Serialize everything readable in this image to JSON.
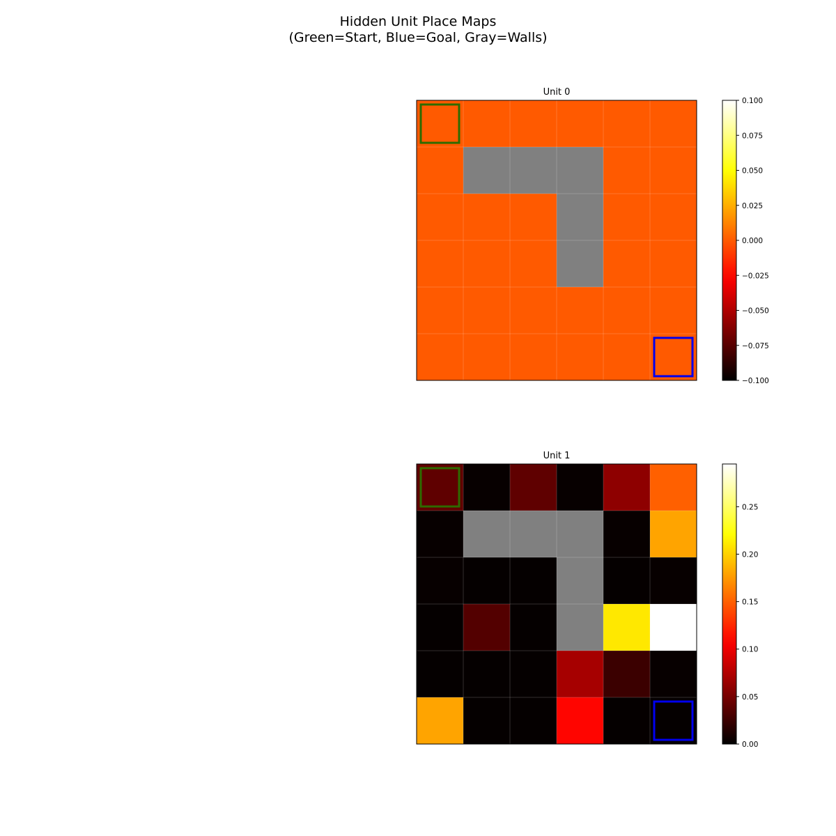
{
  "figure": {
    "title_line1": "Hidden Unit Place Maps",
    "title_line2": "(Green=Start, Blue=Goal, Gray=Walls)"
  },
  "colors": {
    "wall": "#808080",
    "start_marker": "#2e6b00",
    "goal_marker": "#0000ee",
    "colormap": "hot"
  },
  "chart_data": [
    {
      "type": "heatmap",
      "title": "Unit 0",
      "grid_rows": 6,
      "grid_cols": 6,
      "values": [
        [
          0,
          0,
          0,
          0,
          0,
          0
        ],
        [
          0,
          null,
          null,
          null,
          0,
          0
        ],
        [
          0,
          0,
          0,
          null,
          0,
          0
        ],
        [
          0,
          0,
          0,
          null,
          0,
          0
        ],
        [
          0,
          0,
          0,
          0,
          0,
          0
        ],
        [
          0,
          0,
          0,
          0,
          0,
          0
        ]
      ],
      "walls": [
        [
          1,
          1
        ],
        [
          1,
          2
        ],
        [
          1,
          3
        ],
        [
          2,
          3
        ],
        [
          3,
          3
        ]
      ],
      "start": [
        0,
        0
      ],
      "goal": [
        5,
        5
      ],
      "color_range": [
        -0.1,
        0.1
      ],
      "colorbar_ticks": [
        "0.100",
        "0.075",
        "0.050",
        "0.025",
        "0.000",
        "−0.025",
        "−0.050",
        "−0.075",
        "−0.100"
      ],
      "colorbar_tick_values": [
        0.1,
        0.075,
        0.05,
        0.025,
        0.0,
        -0.025,
        -0.05,
        -0.075,
        -0.1
      ]
    },
    {
      "type": "heatmap",
      "title": "Unit 1",
      "grid_rows": 6,
      "grid_cols": 6,
      "values": [
        [
          0.04,
          0.003,
          0.04,
          0.003,
          0.06,
          0.15
        ],
        [
          0.003,
          null,
          null,
          null,
          0.003,
          0.18
        ],
        [
          0.003,
          0.002,
          0.002,
          null,
          0.002,
          0.003
        ],
        [
          0.002,
          0.035,
          0.002,
          null,
          0.21,
          0.295
        ],
        [
          0.002,
          0.002,
          0.002,
          0.07,
          0.025,
          0.003
        ],
        [
          0.18,
          0.002,
          0.002,
          0.11,
          0.002,
          0.002
        ]
      ],
      "walls": [
        [
          1,
          1
        ],
        [
          1,
          2
        ],
        [
          1,
          3
        ],
        [
          2,
          3
        ],
        [
          3,
          3
        ]
      ],
      "start": [
        0,
        0
      ],
      "goal": [
        5,
        5
      ],
      "color_range": [
        0,
        0.295
      ],
      "colorbar_ticks": [
        "0.25",
        "0.20",
        "0.15",
        "0.10",
        "0.05",
        "0.00"
      ],
      "colorbar_tick_values": [
        0.25,
        0.2,
        0.15,
        0.1,
        0.05,
        0.0
      ]
    }
  ]
}
